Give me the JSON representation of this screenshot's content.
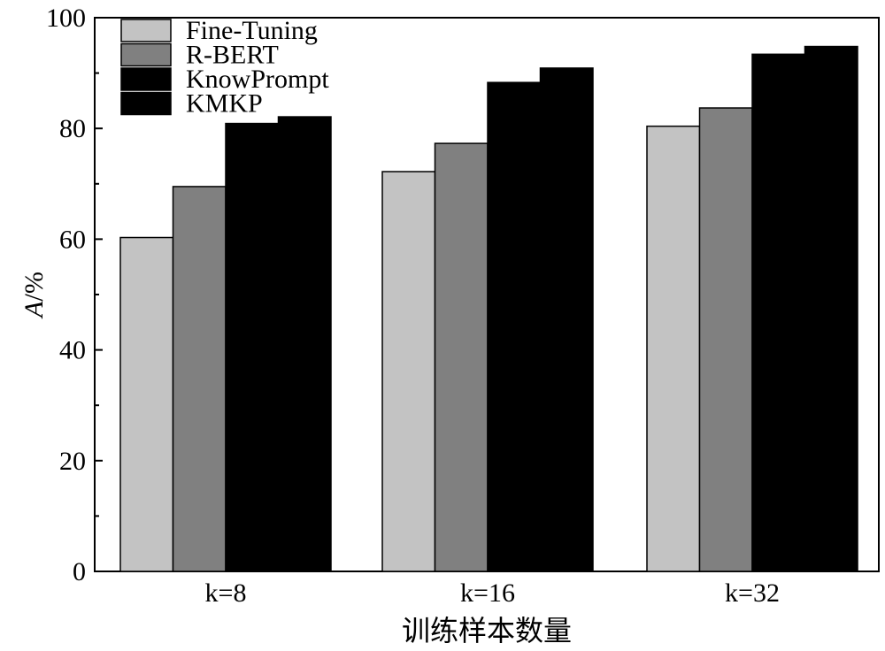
{
  "chart_data": {
    "type": "bar",
    "categories": [
      "k=8",
      "k=16",
      "k=32"
    ],
    "series": [
      {
        "name": "Fine-Tuning",
        "color": "#c3c3c3",
        "values": [
          60.3,
          72.2,
          80.4
        ]
      },
      {
        "name": "R-BERT",
        "color": "#808080",
        "values": [
          69.5,
          77.3,
          83.7
        ]
      },
      {
        "name": "KnowPrompt",
        "color": "#000000",
        "values": [
          80.9,
          88.3,
          93.4
        ]
      },
      {
        "name": "KMKP",
        "color": "#000000",
        "values": [
          82.1,
          90.9,
          94.8
        ]
      }
    ],
    "xlabel": "训练样本数量",
    "ylabel": "A/%",
    "ylim": [
      0,
      100
    ],
    "yticks": [
      "0",
      "20",
      "40",
      "60",
      "80",
      "100"
    ],
    "grid": false,
    "legend_position": "top-left"
  }
}
